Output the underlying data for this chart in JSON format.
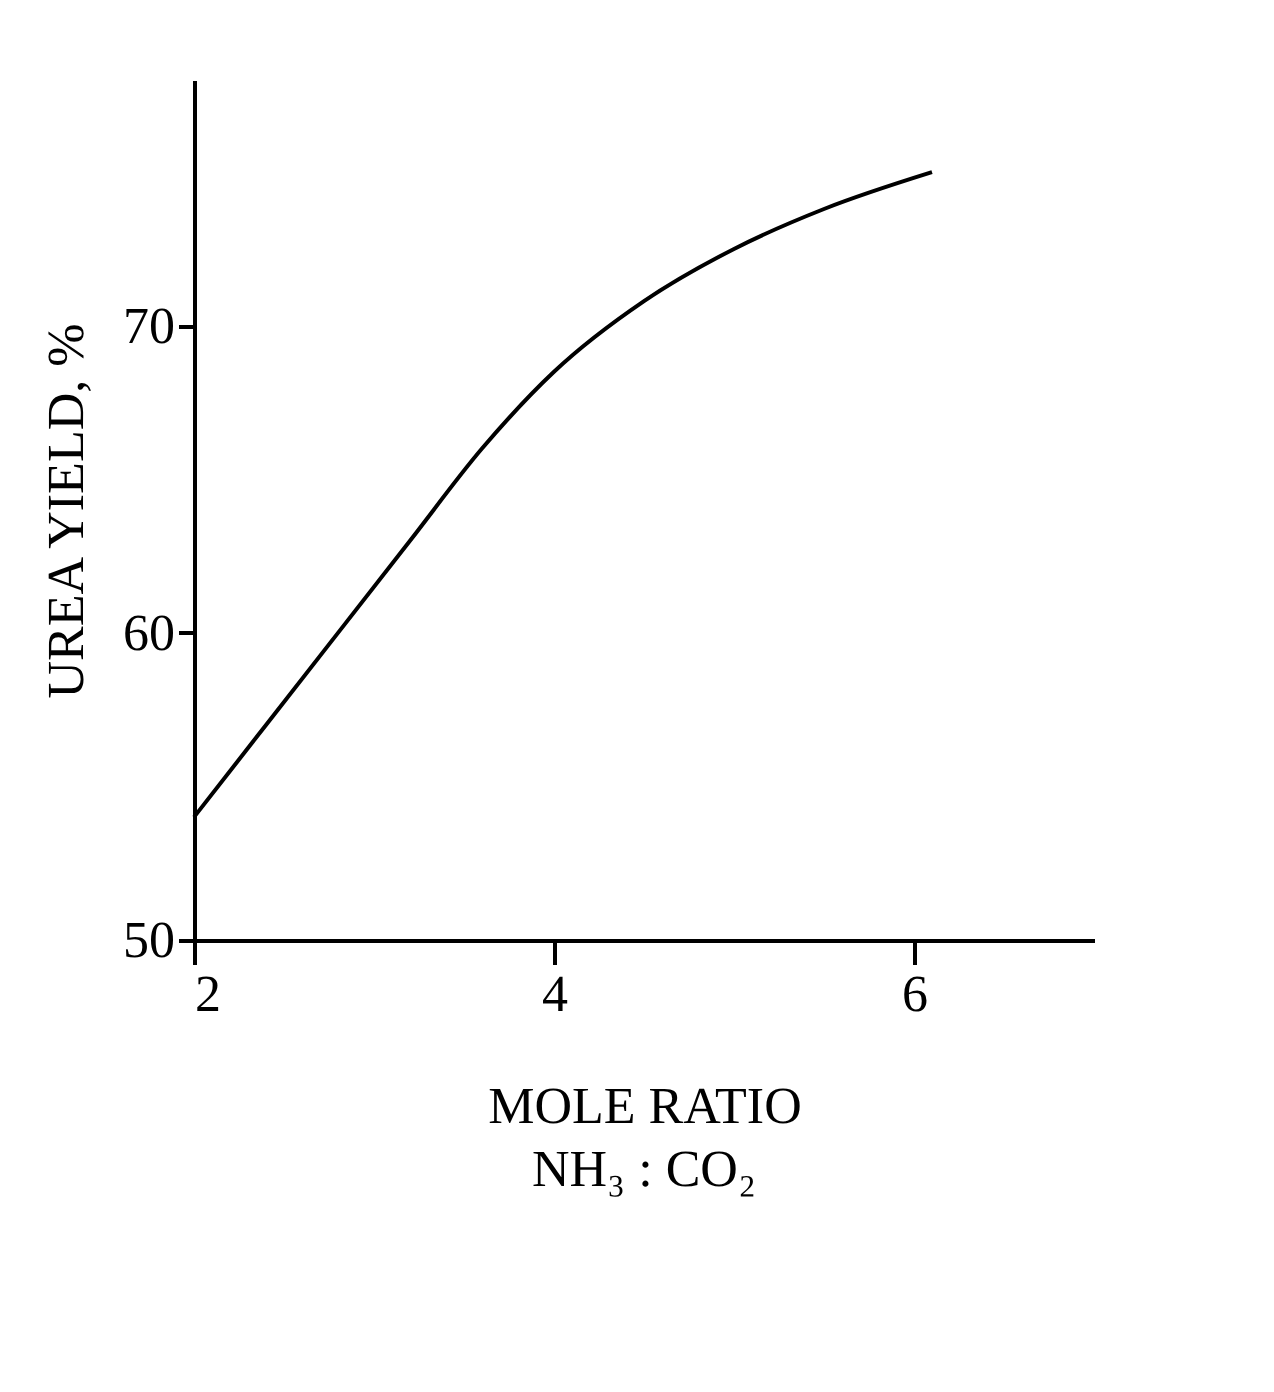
{
  "chart_data": {
    "type": "line",
    "xlabel": "MOLE RATIO",
    "ylabel": "UREA YIELD, %",
    "annotations": [
      "NH₃ : CO₂"
    ],
    "x": [
      2,
      2.4,
      2.8,
      3.2,
      3.6,
      4,
      4.5,
      5,
      5.5,
      6.1
    ],
    "series": [
      {
        "color": "#000000",
        "values": [
          54,
          57,
          60,
          63,
          66,
          68.5,
          70.8,
          72.5,
          73.8,
          75
        ]
      }
    ],
    "xlim": [
      2,
      7
    ],
    "ylim": [
      50,
      78
    ],
    "xticks": [
      2,
      4,
      6
    ],
    "yticks": [
      50,
      60,
      70
    ],
    "grid": false,
    "legend": false,
    "marker": "none",
    "line_style": "solid"
  }
}
